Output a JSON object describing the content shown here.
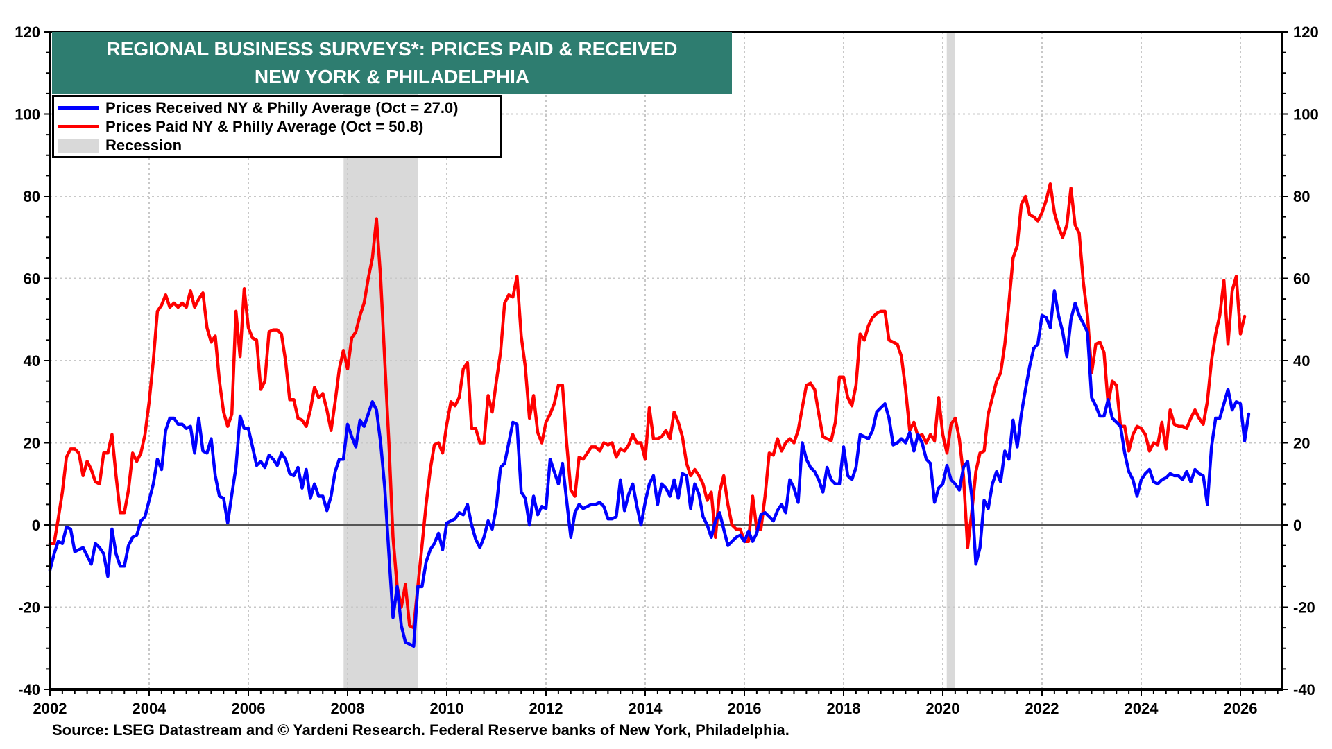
{
  "chart_data": {
    "type": "line",
    "title": "REGIONAL BUSINESS SURVEYS*: PRICES PAID & RECEIVED",
    "subtitle": "NEW YORK & PHILADELPHIA",
    "xlabel": "",
    "ylabel": "",
    "x_start": "2002-01",
    "frequency": "monthly",
    "xlim": [
      2002,
      2026.75
    ],
    "ylim": [
      -40,
      120
    ],
    "x_ticks": [
      2002,
      2004,
      2006,
      2008,
      2010,
      2012,
      2014,
      2016,
      2018,
      2020,
      2022,
      2024,
      2026
    ],
    "x_tick_labels": [
      "2002",
      "2004",
      "2006",
      "2008",
      "2010",
      "2012",
      "2014",
      "2016",
      "2018",
      "2020",
      "2022",
      "2024",
      "2026"
    ],
    "y_ticks": [
      -40,
      -20,
      0,
      20,
      40,
      60,
      80,
      100,
      120
    ],
    "y_tick_labels": [
      "-40",
      "-20",
      "0",
      "20",
      "40",
      "60",
      "80",
      "100",
      "120"
    ],
    "grid": true,
    "legend_position": "top-left",
    "recessions": [
      {
        "start": 2007.92,
        "end": 2009.42
      },
      {
        "start": 2020.08,
        "end": 2020.25
      }
    ],
    "series": [
      {
        "name": "Prices Received NY & Philly Average (Oct = 27.0)",
        "color": "#0000ff",
        "values": [
          -11,
          -7,
          -4,
          -4.5,
          -0.5,
          -1,
          -6.5,
          -6,
          -5.5,
          -7.5,
          -9.5,
          -4.5,
          -5.5,
          -7,
          -12.5,
          -1,
          -7,
          -10,
          -10,
          -5,
          -3,
          -2.5,
          1,
          2,
          6,
          10,
          16,
          13.5,
          23,
          26,
          26,
          24.5,
          24.5,
          23.5,
          24,
          17.5,
          26,
          18,
          17.5,
          21,
          12,
          7,
          6.5,
          0.5,
          7.5,
          14,
          26.5,
          23.5,
          23.5,
          19,
          14.5,
          15.5,
          14,
          17,
          16,
          14.5,
          17.5,
          16,
          12.5,
          12,
          14,
          9,
          13.5,
          6.5,
          10,
          7,
          7,
          3.5,
          7,
          13,
          16,
          16,
          24.5,
          21.5,
          19,
          25.5,
          24,
          27,
          30,
          28,
          20,
          9,
          -7,
          -22.5,
          -15,
          -24.5,
          -28.5,
          -29,
          -29.5,
          -15,
          -15,
          -9,
          -6,
          -4.5,
          -2,
          -6,
          0.5,
          1,
          1.5,
          3,
          2.5,
          5,
          0,
          -3.5,
          -5.5,
          -3,
          1,
          -1,
          4.5,
          14,
          15,
          20,
          25,
          24.5,
          8,
          6.5,
          0,
          7,
          2.5,
          4.5,
          4,
          16,
          13,
          10,
          15,
          6,
          -3,
          3,
          5,
          4,
          4.5,
          5,
          5,
          5.5,
          4.5,
          1.5,
          1.5,
          2,
          11,
          3.5,
          7.5,
          10,
          4.5,
          0,
          5.5,
          10,
          12,
          5,
          10,
          9,
          7,
          11,
          6.5,
          12.5,
          12,
          4,
          10,
          7.5,
          2,
          0,
          -3,
          1,
          3,
          -1,
          -5,
          -4,
          -3,
          -2.5,
          -4,
          -1.5,
          -4,
          -2,
          2.5,
          3,
          2,
          1,
          3.5,
          5,
          3,
          11,
          9,
          5.5,
          20,
          16,
          14,
          13,
          11,
          8,
          14,
          11,
          10,
          10,
          19,
          12,
          11,
          14,
          22,
          21.5,
          21,
          23,
          27.5,
          28.5,
          29.5,
          26,
          19.5,
          20,
          21,
          20,
          22.5,
          18,
          22,
          20,
          16,
          15,
          5.5,
          9,
          10,
          14.5,
          11,
          10,
          8.5,
          14,
          15.5,
          7,
          -9.5,
          -5.5,
          6,
          4,
          10,
          13,
          10.5,
          18,
          16,
          25.5,
          19,
          27,
          33,
          38.5,
          43,
          44,
          51,
          50.5,
          48,
          57,
          51,
          47,
          41,
          50,
          54,
          51,
          49,
          47,
          31,
          29,
          26.5,
          26.5,
          30.5,
          26,
          25,
          24,
          17.5,
          13,
          11,
          7,
          11,
          12.5,
          13.5,
          10.5,
          10,
          11,
          11.5,
          12.5,
          12,
          12,
          11,
          13,
          10.5,
          13.5,
          12.5,
          12,
          5,
          19,
          26,
          26,
          29.5,
          33,
          28,
          30,
          29.5,
          20.5,
          27
        ]
      },
      {
        "name": "Prices Paid NY & Philly Average (Oct = 50.8)",
        "color": "#ff0000",
        "values": [
          -4.5,
          -4.5,
          1.5,
          8,
          16.5,
          18.5,
          18.5,
          17.5,
          12,
          15.5,
          13.5,
          10.5,
          10,
          17.5,
          17.5,
          22,
          12,
          3,
          3,
          8.5,
          17.5,
          15.5,
          17.5,
          22,
          30,
          40,
          52,
          53.5,
          56,
          53,
          54,
          53,
          54,
          53,
          57,
          53,
          55,
          56.5,
          48,
          44.5,
          46,
          35,
          27.5,
          24,
          27,
          52,
          41,
          57.5,
          48,
          45.5,
          45,
          33,
          35,
          47,
          47.5,
          47.5,
          46.5,
          40,
          30.5,
          30.5,
          26,
          25.5,
          24,
          28,
          33.5,
          31,
          32,
          28,
          23,
          30,
          38,
          42.5,
          38,
          45.5,
          47,
          51,
          54,
          60,
          65,
          74.5,
          60,
          40,
          20,
          -3,
          -15,
          -20,
          -14.5,
          -24.5,
          -25,
          -15,
          -5,
          5,
          13.5,
          19.5,
          20,
          17.5,
          24.5,
          30,
          29,
          31,
          38,
          39.5,
          23.5,
          23.5,
          20,
          20,
          31.5,
          27.5,
          35,
          42,
          54,
          56,
          55.5,
          60.5,
          46,
          38.5,
          26,
          31.5,
          22.5,
          20,
          25,
          27,
          29.5,
          34,
          34,
          20,
          8.5,
          7,
          16.5,
          16,
          17.5,
          19,
          19,
          18,
          20,
          19.5,
          20,
          16.5,
          18.5,
          18,
          19.5,
          22,
          20,
          20,
          16,
          28.5,
          21,
          21,
          21.5,
          23,
          21,
          27.5,
          25,
          21.5,
          15,
          12,
          13.5,
          12,
          10,
          6,
          8,
          -3,
          8,
          12,
          5,
          0,
          -1,
          -1,
          -4,
          -4,
          7,
          -1,
          -1,
          7,
          17.5,
          17,
          21,
          18,
          20,
          21,
          20,
          23,
          28.5,
          34,
          34.5,
          33,
          27,
          21.5,
          21,
          20.5,
          25,
          36,
          36,
          31,
          29,
          34,
          46.5,
          45,
          48.5,
          50.5,
          51.5,
          52,
          52,
          45,
          44.5,
          44,
          41,
          33,
          23,
          25,
          21.5,
          22,
          20,
          22,
          20.5,
          31,
          22,
          17.5,
          24.5,
          26,
          21,
          12,
          -5.5,
          3,
          13,
          17.5,
          18,
          27,
          31,
          35,
          37,
          44,
          54,
          65,
          68,
          78,
          80,
          75.5,
          75,
          74,
          76,
          79,
          83,
          76,
          72.5,
          70,
          73,
          82,
          73,
          71,
          59,
          51,
          37,
          44,
          44.5,
          42,
          29.5,
          35,
          34,
          24,
          24,
          18,
          22,
          24,
          23.5,
          22,
          18,
          20,
          19.5,
          25,
          18.5,
          28,
          24.5,
          24,
          24,
          23.5,
          26,
          28,
          26,
          24.5,
          30,
          40,
          46.5,
          51,
          59.5,
          44,
          57,
          60.5,
          46.5,
          50.8
        ]
      }
    ]
  },
  "legend": {
    "items": [
      {
        "label": "Prices Received NY & Philly Average (Oct = 27.0)",
        "color": "#0000ff",
        "kind": "line"
      },
      {
        "label": "Prices Paid NY & Philly Average (Oct = 50.8)",
        "color": "#ff0000",
        "kind": "line"
      },
      {
        "label": "Recession",
        "color": "#d9d9d9",
        "kind": "block"
      }
    ]
  },
  "colors": {
    "title_bg": "#2e7d70",
    "recession": "#d9d9d9",
    "grid": "#c8c8c8",
    "zero_line": "#555555"
  },
  "source": "Source: LSEG Datastream and © Yardeni Research. Federal Reserve banks of New York, Philadelphia."
}
